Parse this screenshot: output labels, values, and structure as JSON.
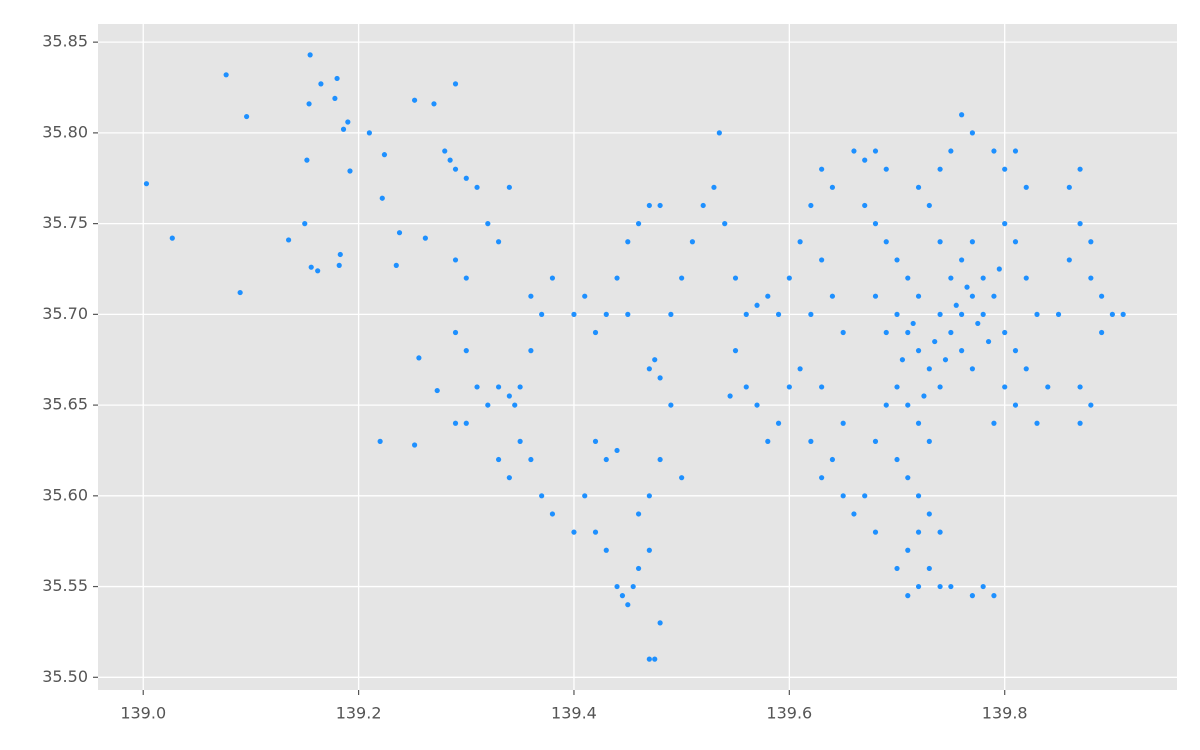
{
  "chart_data": {
    "type": "scatter",
    "color": "#1e90ff",
    "grid": true,
    "xlim": [
      138.958,
      139.96
    ],
    "ylim": [
      35.493,
      35.86
    ],
    "xticks": [
      {
        "value": 139,
        "label": "139.0"
      },
      139.2,
      139.4,
      139.6,
      139.8
    ],
    "yticks": [
      {
        "value": 35.5,
        "label": "35.50"
      },
      35.55,
      {
        "value": 35.6,
        "label": "35.60"
      },
      35.65,
      {
        "value": 35.7,
        "label": "35.70"
      },
      35.75,
      {
        "value": 35.8,
        "label": "35.80"
      },
      35.85
    ],
    "x": [
      139.003,
      139.027,
      139.077,
      139.09,
      139.096,
      139.135,
      139.15,
      139.152,
      139.154,
      139.155,
      139.156,
      139.162,
      139.165,
      139.178,
      139.18,
      139.183,
      139.182,
      139.186,
      139.19,
      139.192,
      139.21,
      139.22,
      139.222,
      139.224,
      139.235,
      139.238,
      139.252,
      139.252,
      139.256,
      139.262,
      139.27,
      139.273,
      139.29,
      139.28,
      139.285,
      139.29,
      139.3,
      139.31,
      139.29,
      139.3,
      139.32,
      139.33,
      139.34,
      139.29,
      139.3,
      139.31,
      139.32,
      139.3,
      139.29,
      139.33,
      139.34,
      139.345,
      139.35,
      139.33,
      139.34,
      139.35,
      139.36,
      139.37,
      139.38,
      139.36,
      139.37,
      139.36,
      139.38,
      139.4,
      139.41,
      139.42,
      139.43,
      139.44,
      139.45,
      139.46,
      139.47,
      139.48,
      139.45,
      139.42,
      139.43,
      139.44,
      139.41,
      139.4,
      139.42,
      139.43,
      139.44,
      139.445,
      139.45,
      139.455,
      139.46,
      139.47,
      139.475,
      139.48,
      139.47,
      139.46,
      139.47,
      139.48,
      139.47,
      139.475,
      139.48,
      139.49,
      139.5,
      139.49,
      139.5,
      139.51,
      139.52,
      139.53,
      139.535,
      139.54,
      139.55,
      139.56,
      139.57,
      139.58,
      139.59,
      139.55,
      139.56,
      139.545,
      139.57,
      139.58,
      139.59,
      139.6,
      139.61,
      139.62,
      139.6,
      139.61,
      139.62,
      139.63,
      139.64,
      139.63,
      139.64,
      139.65,
      139.63,
      139.62,
      139.63,
      139.64,
      139.65,
      139.66,
      139.65,
      139.66,
      139.67,
      139.68,
      139.69,
      139.67,
      139.68,
      139.69,
      139.7,
      139.71,
      139.72,
      139.7,
      139.71,
      139.72,
      139.73,
      139.74,
      139.7,
      139.71,
      139.72,
      139.73,
      139.7,
      139.71,
      139.72,
      139.73,
      139.72,
      139.71,
      139.7,
      139.71,
      139.72,
      139.73,
      139.74,
      139.75,
      139.77,
      139.78,
      139.79,
      139.74,
      139.68,
      139.67,
      139.68,
      139.69,
      139.69,
      139.68,
      139.74,
      139.75,
      139.76,
      139.77,
      139.78,
      139.76,
      139.77,
      139.75,
      139.76,
      139.77,
      139.78,
      139.79,
      139.74,
      139.73,
      139.72,
      139.74,
      139.75,
      139.76,
      139.77,
      139.79,
      139.8,
      139.81,
      139.82,
      139.8,
      139.81,
      139.82,
      139.83,
      139.8,
      139.81,
      139.82,
      139.8,
      139.79,
      139.81,
      139.83,
      139.84,
      139.85,
      139.86,
      139.87,
      139.88,
      139.86,
      139.87,
      139.88,
      139.89,
      139.9,
      139.91,
      139.89,
      139.87,
      139.88,
      139.87,
      139.705,
      139.715,
      139.725,
      139.735,
      139.745,
      139.755,
      139.765,
      139.775,
      139.785,
      139.795
    ],
    "values": [
      35.772,
      35.742,
      35.832,
      35.712,
      35.809,
      35.741,
      35.75,
      35.785,
      35.816,
      35.843,
      35.726,
      35.724,
      35.827,
      35.819,
      35.83,
      35.733,
      35.727,
      35.802,
      35.806,
      35.779,
      35.8,
      35.63,
      35.764,
      35.788,
      35.727,
      35.745,
      35.818,
      35.628,
      35.676,
      35.742,
      35.816,
      35.658,
      35.827,
      35.79,
      35.785,
      35.78,
      35.775,
      35.77,
      35.73,
      35.72,
      35.75,
      35.74,
      35.77,
      35.69,
      35.68,
      35.66,
      35.65,
      35.64,
      35.64,
      35.66,
      35.655,
      35.65,
      35.66,
      35.62,
      35.61,
      35.63,
      35.62,
      35.6,
      35.59,
      35.68,
      35.7,
      35.71,
      35.72,
      35.7,
      35.71,
      35.69,
      35.7,
      35.72,
      35.74,
      35.75,
      35.76,
      35.76,
      35.7,
      35.63,
      35.62,
      35.625,
      35.6,
      35.58,
      35.58,
      35.57,
      35.55,
      35.545,
      35.54,
      35.55,
      35.56,
      35.51,
      35.51,
      35.53,
      35.57,
      35.59,
      35.6,
      35.62,
      35.67,
      35.675,
      35.665,
      35.65,
      35.61,
      35.7,
      35.72,
      35.74,
      35.76,
      35.77,
      35.8,
      35.75,
      35.72,
      35.7,
      35.705,
      35.71,
      35.7,
      35.68,
      35.66,
      35.655,
      35.65,
      35.63,
      35.64,
      35.66,
      35.67,
      35.7,
      35.72,
      35.74,
      35.76,
      35.78,
      35.77,
      35.73,
      35.71,
      35.69,
      35.66,
      35.63,
      35.61,
      35.62,
      35.6,
      35.59,
      35.64,
      35.79,
      35.785,
      35.79,
      35.78,
      35.76,
      35.75,
      35.74,
      35.73,
      35.72,
      35.71,
      35.7,
      35.69,
      35.68,
      35.67,
      35.66,
      35.66,
      35.65,
      35.64,
      35.63,
      35.62,
      35.61,
      35.6,
      35.59,
      35.58,
      35.57,
      35.56,
      35.545,
      35.55,
      35.56,
      35.55,
      35.55,
      35.545,
      35.55,
      35.545,
      35.58,
      35.58,
      35.6,
      35.63,
      35.65,
      35.69,
      35.71,
      35.7,
      35.69,
      35.7,
      35.71,
      35.7,
      35.68,
      35.67,
      35.72,
      35.73,
      35.74,
      35.72,
      35.71,
      35.74,
      35.76,
      35.77,
      35.78,
      35.79,
      35.81,
      35.8,
      35.79,
      35.78,
      35.79,
      35.77,
      35.75,
      35.74,
      35.72,
      35.7,
      35.69,
      35.68,
      35.67,
      35.66,
      35.64,
      35.65,
      35.64,
      35.66,
      35.7,
      35.73,
      35.75,
      35.74,
      35.77,
      35.78,
      35.72,
      35.71,
      35.7,
      35.7,
      35.69,
      35.66,
      35.65,
      35.64,
      35.675,
      35.695,
      35.655,
      35.685,
      35.675,
      35.705,
      35.715,
      35.695,
      35.685,
      35.725
    ]
  }
}
